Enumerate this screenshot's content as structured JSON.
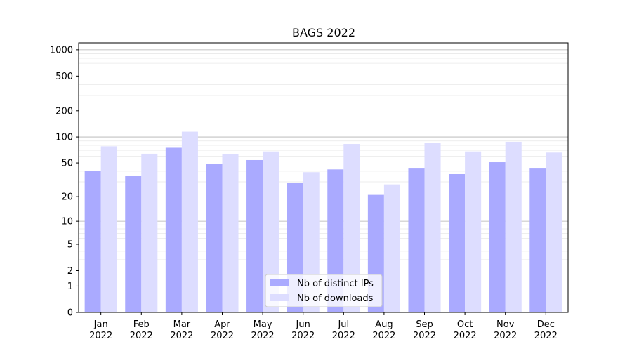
{
  "chart_data": {
    "type": "bar",
    "title": "BAGS 2022",
    "xlabel": "",
    "ylabel": "",
    "yscale": "symlog",
    "ylim": [
      0,
      1200
    ],
    "yticks": [
      0,
      1,
      2,
      5,
      10,
      20,
      50,
      100,
      200,
      500,
      1000
    ],
    "categories": [
      [
        "Jan",
        "2022"
      ],
      [
        "Feb",
        "2022"
      ],
      [
        "Mar",
        "2022"
      ],
      [
        "Apr",
        "2022"
      ],
      [
        "May",
        "2022"
      ],
      [
        "Jun",
        "2022"
      ],
      [
        "Jul",
        "2022"
      ],
      [
        "Aug",
        "2022"
      ],
      [
        "Sep",
        "2022"
      ],
      [
        "Oct",
        "2022"
      ],
      [
        "Nov",
        "2022"
      ],
      [
        "Dec",
        "2022"
      ]
    ],
    "series": [
      {
        "name": "Nb of distinct IPs",
        "color": "#aaaaff",
        "values": [
          40,
          35,
          75,
          49,
          54,
          29,
          42,
          21,
          43,
          37,
          51,
          43
        ]
      },
      {
        "name": "Nb of downloads",
        "color": "#ddddff",
        "values": [
          78,
          64,
          115,
          63,
          68,
          39,
          83,
          28,
          86,
          68,
          88,
          66
        ]
      }
    ],
    "legend_position": "lower center",
    "grid": true
  }
}
